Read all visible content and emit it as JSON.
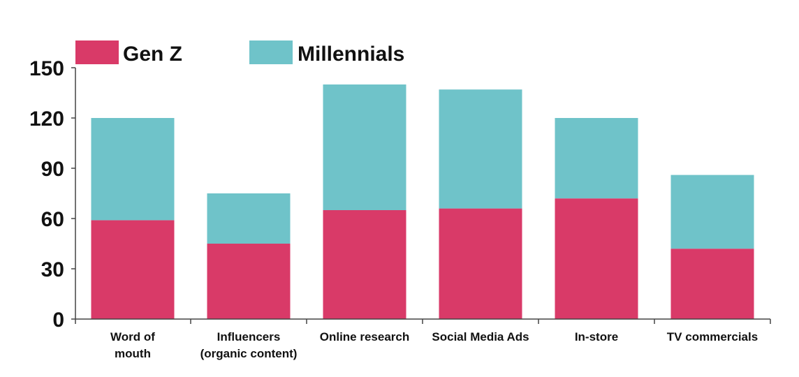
{
  "chart_data": {
    "type": "bar",
    "stacked": true,
    "categories": [
      [
        "Word of",
        "mouth"
      ],
      [
        "Influencers",
        "(organic content)"
      ],
      [
        "Online research"
      ],
      [
        "Social Media Ads"
      ],
      [
        "In-store"
      ],
      [
        "TV commercials"
      ]
    ],
    "series": [
      {
        "name": "Gen Z",
        "color": "#d93a68",
        "values": [
          59,
          45,
          65,
          66,
          72,
          42
        ]
      },
      {
        "name": "Millennials",
        "color": "#6fc3c9",
        "values": [
          61,
          30,
          75,
          71,
          48,
          44
        ]
      }
    ],
    "ylim": [
      0,
      150
    ],
    "yticks": [
      0,
      30,
      60,
      90,
      120,
      150
    ],
    "grid": false,
    "legend": "top-left"
  }
}
